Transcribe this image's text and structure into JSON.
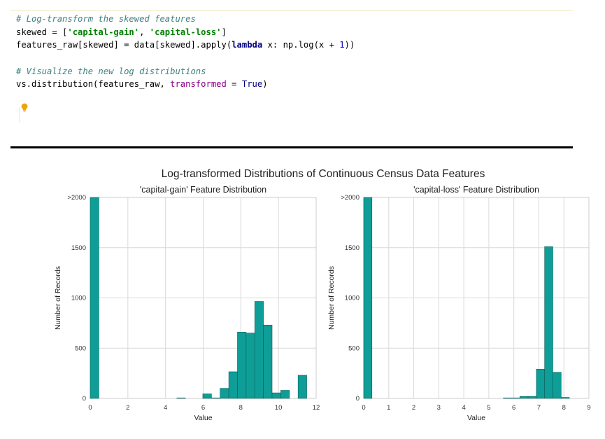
{
  "code_cell": {
    "lines": [
      [
        {
          "t": "# Log-transform the skewed features",
          "c": "cm-comment"
        }
      ],
      [
        {
          "t": "skewed = [",
          "c": ""
        },
        {
          "t": "'capital-gain'",
          "c": "cm-string"
        },
        {
          "t": ", ",
          "c": ""
        },
        {
          "t": "'capital-loss'",
          "c": "cm-string"
        },
        {
          "t": "]",
          "c": ""
        }
      ],
      [
        {
          "t": "features_raw[skewed] = data[skewed].apply(",
          "c": ""
        },
        {
          "t": "lambda",
          "c": "cm-keyword"
        },
        {
          "t": " x: np.log(x + ",
          "c": ""
        },
        {
          "t": "1",
          "c": "cm-number"
        },
        {
          "t": "))",
          "c": ""
        }
      ],
      [
        {
          "t": "",
          "c": ""
        }
      ],
      [
        {
          "t": "# Visualize the new log distributions",
          "c": "cm-comment"
        }
      ],
      [
        {
          "t": "vs.distribution(features_raw, ",
          "c": ""
        },
        {
          "t": "transformed",
          "c": "cm-kwarg"
        },
        {
          "t": " = ",
          "c": ""
        },
        {
          "t": "True",
          "c": "cm-builtin"
        },
        {
          "t": ")",
          "c": ""
        }
      ]
    ],
    "hint_icon": "lightbulb-icon"
  },
  "colors": {
    "bar_fill": "#0e9e97",
    "bar_stroke": "#0a5f5b",
    "grid": "#d9d9d9",
    "bulb": "#f0a30a"
  },
  "chart_data": [
    {
      "type": "bar",
      "suptitle": "Log-transformed Distributions of Continuous Census Data Features",
      "title": "'capital-gain' Feature Distribution",
      "xlabel": "Value",
      "ylabel": "Number of Records",
      "xlim": [
        0,
        12
      ],
      "ylim": [
        0,
        2000
      ],
      "xticks": [
        "0",
        "2",
        "4",
        "6",
        "8",
        "10",
        "12"
      ],
      "yticks": [
        "0",
        "500",
        "1000",
        "1500",
        ">2000"
      ],
      "grid": true,
      "bins": [
        {
          "x0": 0.0,
          "x1": 0.46,
          "value": 2000
        },
        {
          "x0": 4.6,
          "x1": 5.06,
          "value": 5
        },
        {
          "x0": 5.98,
          "x1": 6.44,
          "value": 45
        },
        {
          "x0": 6.44,
          "x1": 6.9,
          "value": 5
        },
        {
          "x0": 6.9,
          "x1": 7.36,
          "value": 100
        },
        {
          "x0": 7.36,
          "x1": 7.82,
          "value": 265
        },
        {
          "x0": 7.82,
          "x1": 8.28,
          "value": 660
        },
        {
          "x0": 8.28,
          "x1": 8.74,
          "value": 650
        },
        {
          "x0": 8.74,
          "x1": 9.2,
          "value": 965
        },
        {
          "x0": 9.2,
          "x1": 9.66,
          "value": 730
        },
        {
          "x0": 9.66,
          "x1": 10.12,
          "value": 55
        },
        {
          "x0": 10.12,
          "x1": 10.58,
          "value": 80
        },
        {
          "x0": 11.04,
          "x1": 11.5,
          "value": 230
        }
      ]
    },
    {
      "type": "bar",
      "title": "'capital-loss' Feature Distribution",
      "xlabel": "Value",
      "ylabel": "Number of Records",
      "xlim": [
        0,
        9
      ],
      "ylim": [
        0,
        2000
      ],
      "xticks": [
        "0",
        "1",
        "2",
        "3",
        "4",
        "5",
        "6",
        "7",
        "8",
        "9"
      ],
      "yticks": [
        "0",
        "500",
        "1000",
        "1500",
        ">2000"
      ],
      "grid": true,
      "bins": [
        {
          "x0": 0.0,
          "x1": 0.33,
          "value": 2000
        },
        {
          "x0": 5.58,
          "x1": 5.91,
          "value": 5
        },
        {
          "x0": 5.91,
          "x1": 6.24,
          "value": 5
        },
        {
          "x0": 6.24,
          "x1": 6.57,
          "value": 20
        },
        {
          "x0": 6.57,
          "x1": 6.9,
          "value": 20
        },
        {
          "x0": 6.9,
          "x1": 7.23,
          "value": 290
        },
        {
          "x0": 7.23,
          "x1": 7.56,
          "value": 1510
        },
        {
          "x0": 7.56,
          "x1": 7.89,
          "value": 260
        },
        {
          "x0": 7.89,
          "x1": 8.22,
          "value": 10
        }
      ]
    }
  ]
}
